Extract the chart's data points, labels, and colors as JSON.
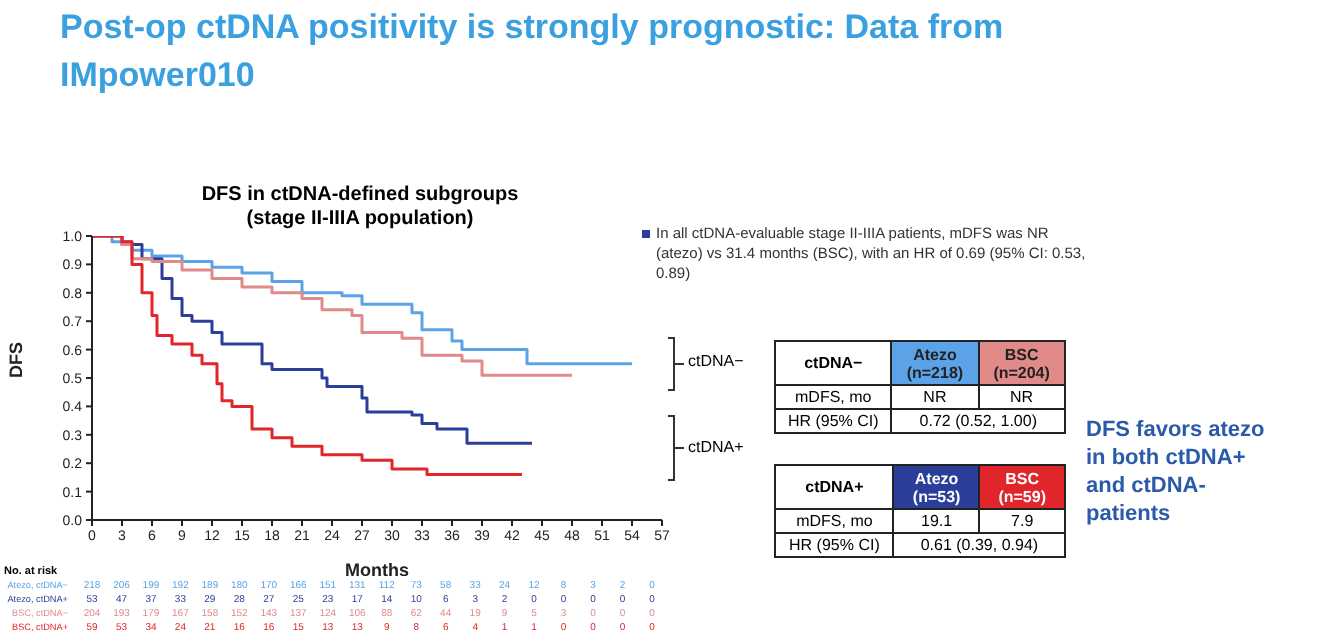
{
  "chart_data": {
    "type": "step",
    "title": "Post-op ctDNA positivity is strongly prognostic: Data from IMpower010",
    "subtitle": "DFS in ctDNA-defined subgroups\n(stage II-IIIA population)",
    "xlabel": "Months",
    "ylabel": "DFS",
    "xlim": [
      0,
      57
    ],
    "xticks": [
      0,
      3,
      6,
      9,
      12,
      15,
      18,
      21,
      24,
      27,
      30,
      33,
      36,
      39,
      42,
      45,
      48,
      51,
      54,
      57
    ],
    "ylim": [
      0,
      1
    ],
    "yticks": [
      {
        "value": 0,
        "label": "0.0"
      },
      {
        "value": 0.1,
        "label": "0.1"
      },
      {
        "value": 0.2,
        "label": "0.2"
      },
      {
        "value": 0.3,
        "label": "0.3"
      },
      {
        "value": 0.4,
        "label": "0.4"
      },
      {
        "value": 0.5,
        "label": "0.5"
      },
      {
        "value": 0.6,
        "label": "0.6"
      },
      {
        "value": 0.7,
        "label": "0.7"
      },
      {
        "value": 0.8,
        "label": "0.8"
      },
      {
        "value": 0.9,
        "label": "0.9"
      },
      {
        "value": 1,
        "label": "1.0"
      }
    ],
    "grid": false,
    "legend": false,
    "series": [
      {
        "name": "Atezo, ctDNA−",
        "color": "#5ba3e6",
        "x": [
          0,
          2,
          4,
          6,
          9,
          12,
          15,
          18,
          21,
          25,
          27,
          32,
          33,
          36,
          37,
          43.5,
          54
        ],
        "values": [
          1,
          0.98,
          0.95,
          0.93,
          0.91,
          0.89,
          0.87,
          0.84,
          0.8,
          0.79,
          0.76,
          0.73,
          0.67,
          0.63,
          0.6,
          0.55,
          0.55
        ]
      },
      {
        "name": "Atezo, ctDNA+",
        "color": "#2b3f9a",
        "x": [
          0,
          3,
          5,
          7,
          8,
          9,
          10,
          12,
          13,
          16,
          17,
          18,
          23,
          23.5,
          27,
          27.5,
          32,
          33,
          34.5,
          37.5,
          44
        ],
        "values": [
          1,
          0.97,
          0.92,
          0.85,
          0.78,
          0.72,
          0.7,
          0.66,
          0.62,
          0.62,
          0.55,
          0.53,
          0.5,
          0.47,
          0.43,
          0.38,
          0.37,
          0.34,
          0.32,
          0.27,
          0.27
        ]
      },
      {
        "name": "BSC, ctDNA−",
        "color": "#e08a8a",
        "x": [
          0,
          3,
          4,
          6,
          9,
          12,
          15,
          18,
          21,
          23,
          26,
          27,
          31,
          33,
          37,
          39,
          48
        ],
        "values": [
          1,
          0.97,
          0.92,
          0.91,
          0.88,
          0.85,
          0.82,
          0.8,
          0.78,
          0.74,
          0.72,
          0.66,
          0.64,
          0.58,
          0.56,
          0.51,
          0.51
        ]
      },
      {
        "name": "BSC, ctDNA+",
        "color": "#e0262a",
        "x": [
          0,
          3,
          4,
          5,
          6,
          6.5,
          8,
          10,
          11,
          12.5,
          13,
          14,
          16,
          18,
          20,
          23,
          27,
          30,
          33.5,
          43
        ],
        "values": [
          1,
          0.98,
          0.9,
          0.8,
          0.72,
          0.65,
          0.62,
          0.58,
          0.55,
          0.48,
          0.42,
          0.4,
          0.32,
          0.29,
          0.26,
          0.23,
          0.21,
          0.18,
          0.16,
          0.16
        ]
      }
    ],
    "annotations": [
      "In all ctDNA-evaluable stage II-IIIA patients, mDFS was NR (atezo) vs 31.4 months (BSC), with an HR of 0.69 (95% CI: 0.53, 0.89)",
      "ctDNA−",
      "ctDNA+",
      "ctDNA−",
      "Atezo (n=218)",
      "BSC (n=204)",
      "mDFS, mo",
      "NR",
      "NR",
      "HR (95% CI)",
      "0.72 (0.52, 1.00)",
      "ctDNA+",
      "Atezo (n=53)",
      "BSC (n=59)",
      "mDFS, mo",
      "19.1",
      "7.9",
      "HR (95% CI)",
      "0.61 (0.39, 0.94)",
      "DFS favors atezo in both ctDNA+ and ctDNA- patients",
      "No. at risk",
      "218 206 199 192 189 180 170 166 151 131 112 73 58 33 24 12 8 3 2 0",
      "53 47 37 33 29 28 27 25 23 17 14 10 6 3 2 0 0 0 0 0",
      "204 193 179 167 158 152 143 137 124 106 88 62 44 19 9 5 3 0 0 0",
      "59 53 34 24 21 16 16 15 13 13 9 8 6 4 1 1 0 0 0 0"
    ]
  }
}
